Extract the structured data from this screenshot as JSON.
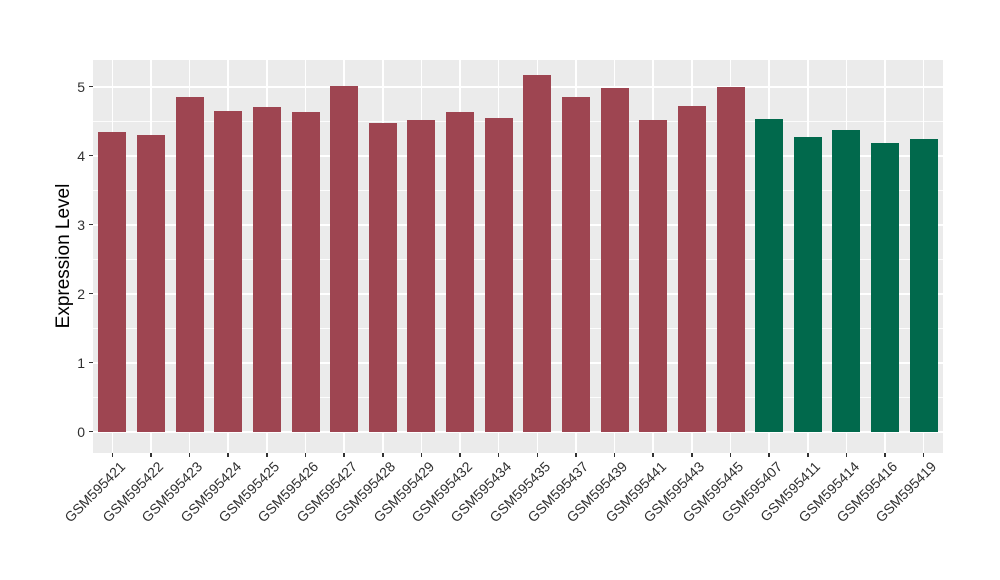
{
  "figure": {
    "background_color": "#FFFFFF",
    "panel_background_color": "#EBEBEB",
    "gridline_color": "#FFFFFF",
    "tick_mark_color": "#333333",
    "axis_text_color": "#303030",
    "axis_title_color": "#000000"
  },
  "chart_data": {
    "type": "bar",
    "title": "",
    "xlabel": "",
    "ylabel": "Expression Level",
    "ylim": [
      -0.3,
      5.4
    ],
    "yticks": [
      0,
      1,
      2,
      3,
      4,
      5
    ],
    "yminor": [
      0.5,
      1.5,
      2.5,
      3.5,
      4.5
    ],
    "grid": "white major+minor horizontal, white major vertical at each category, on gray panel",
    "legend_position": "none",
    "x_label_angle_deg": 45,
    "group_colors": {
      "group1": "#9E4551",
      "group2": "#01694C"
    },
    "categories": [
      "GSM595421",
      "GSM595422",
      "GSM595423",
      "GSM595424",
      "GSM595425",
      "GSM595426",
      "GSM595427",
      "GSM595428",
      "GSM595429",
      "GSM595432",
      "GSM595434",
      "GSM595435",
      "GSM595437",
      "GSM595439",
      "GSM595441",
      "GSM595443",
      "GSM595445",
      "GSM595407",
      "GSM595411",
      "GSM595414",
      "GSM595416",
      "GSM595419"
    ],
    "values": [
      4.35,
      4.3,
      4.85,
      4.65,
      4.71,
      4.64,
      5.01,
      4.48,
      4.52,
      4.64,
      4.55,
      5.17,
      4.85,
      4.98,
      4.52,
      4.72,
      4.99,
      4.53,
      4.27,
      4.37,
      4.18,
      4.24
    ],
    "bar_groups": [
      "group1",
      "group1",
      "group1",
      "group1",
      "group1",
      "group1",
      "group1",
      "group1",
      "group1",
      "group1",
      "group1",
      "group1",
      "group1",
      "group1",
      "group1",
      "group1",
      "group1",
      "group2",
      "group2",
      "group2",
      "group2",
      "group2"
    ]
  }
}
